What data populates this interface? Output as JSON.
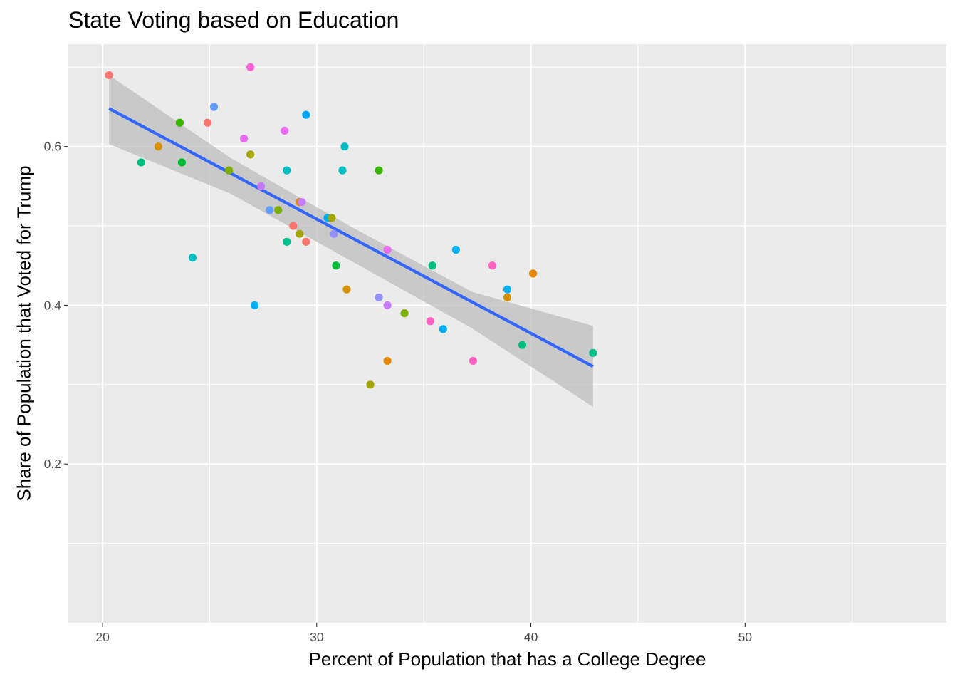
{
  "chart_data": {
    "type": "scatter",
    "title": "State Voting based on Education",
    "xlabel": "Percent of Population that has a College Degree",
    "ylabel": "Share of Population that Voted for Trump",
    "xlim": [
      18.4,
      59.4
    ],
    "ylim": [
      0.0,
      0.729
    ],
    "x_ticks": [
      20,
      30,
      40,
      50
    ],
    "x_minor_ticks": [
      25,
      35,
      45,
      55
    ],
    "y_ticks": [
      0.2,
      0.4,
      0.6
    ],
    "y_minor_ticks": [
      0.1,
      0.3,
      0.5,
      0.7
    ],
    "grid": true,
    "legend": "none",
    "colors": {
      "panel": "#ebebeb",
      "gridline": "#ffffff",
      "fit_line": "#3366ff",
      "confidence_band": "#bdbdbd",
      "tick_text": "#4d4d4d"
    },
    "points": [
      {
        "x": 20.3,
        "y": 0.69,
        "color": "#f8766d"
      },
      {
        "x": 26.9,
        "y": 0.7,
        "color": "#fb61d7"
      },
      {
        "x": 25.2,
        "y": 0.65,
        "color": "#619cff"
      },
      {
        "x": 29.5,
        "y": 0.64,
        "color": "#00a9ff"
      },
      {
        "x": 23.6,
        "y": 0.63,
        "color": "#39b600"
      },
      {
        "x": 24.9,
        "y": 0.63,
        "color": "#f8766d"
      },
      {
        "x": 26.6,
        "y": 0.61,
        "color": "#e76bf3"
      },
      {
        "x": 28.5,
        "y": 0.62,
        "color": "#e76bf3"
      },
      {
        "x": 22.6,
        "y": 0.6,
        "color": "#d89000"
      },
      {
        "x": 31.3,
        "y": 0.6,
        "color": "#00bfc4"
      },
      {
        "x": 26.9,
        "y": 0.59,
        "color": "#a3a500"
      },
      {
        "x": 21.8,
        "y": 0.58,
        "color": "#00bf7d"
      },
      {
        "x": 23.7,
        "y": 0.58,
        "color": "#00ba38"
      },
      {
        "x": 25.9,
        "y": 0.57,
        "color": "#7cae00"
      },
      {
        "x": 28.6,
        "y": 0.57,
        "color": "#00bfc4"
      },
      {
        "x": 31.2,
        "y": 0.57,
        "color": "#00bfc4"
      },
      {
        "x": 32.9,
        "y": 0.57,
        "color": "#39b600"
      },
      {
        "x": 27.4,
        "y": 0.55,
        "color": "#c77cff"
      },
      {
        "x": 29.2,
        "y": 0.53,
        "color": "#e58700"
      },
      {
        "x": 29.3,
        "y": 0.53,
        "color": "#c77cff"
      },
      {
        "x": 27.8,
        "y": 0.52,
        "color": "#619cff"
      },
      {
        "x": 28.2,
        "y": 0.52,
        "color": "#7cae00"
      },
      {
        "x": 30.5,
        "y": 0.51,
        "color": "#00b0f6"
      },
      {
        "x": 30.7,
        "y": 0.51,
        "color": "#a3a500"
      },
      {
        "x": 28.9,
        "y": 0.5,
        "color": "#f8766d"
      },
      {
        "x": 29.2,
        "y": 0.49,
        "color": "#a3a500"
      },
      {
        "x": 30.8,
        "y": 0.49,
        "color": "#9590ff"
      },
      {
        "x": 28.6,
        "y": 0.48,
        "color": "#00c08b"
      },
      {
        "x": 29.5,
        "y": 0.48,
        "color": "#f8766d"
      },
      {
        "x": 33.3,
        "y": 0.47,
        "color": "#e76bf3"
      },
      {
        "x": 36.5,
        "y": 0.47,
        "color": "#00b0f6"
      },
      {
        "x": 24.2,
        "y": 0.46,
        "color": "#00bfc4"
      },
      {
        "x": 30.9,
        "y": 0.45,
        "color": "#00ba38"
      },
      {
        "x": 35.4,
        "y": 0.45,
        "color": "#00bf7d"
      },
      {
        "x": 38.2,
        "y": 0.45,
        "color": "#ff61c3"
      },
      {
        "x": 40.1,
        "y": 0.44,
        "color": "#e58700"
      },
      {
        "x": 31.4,
        "y": 0.42,
        "color": "#d89000"
      },
      {
        "x": 38.9,
        "y": 0.42,
        "color": "#00b0f6"
      },
      {
        "x": 32.9,
        "y": 0.41,
        "color": "#9590ff"
      },
      {
        "x": 38.9,
        "y": 0.41,
        "color": "#d89000"
      },
      {
        "x": 27.1,
        "y": 0.4,
        "color": "#00b0f6"
      },
      {
        "x": 33.3,
        "y": 0.4,
        "color": "#c77cff"
      },
      {
        "x": 34.1,
        "y": 0.39,
        "color": "#7cae00"
      },
      {
        "x": 35.3,
        "y": 0.38,
        "color": "#ff61c3"
      },
      {
        "x": 35.9,
        "y": 0.37,
        "color": "#00b0f6"
      },
      {
        "x": 39.6,
        "y": 0.35,
        "color": "#00bf7d"
      },
      {
        "x": 42.9,
        "y": 0.34,
        "color": "#00c08b"
      },
      {
        "x": 33.3,
        "y": 0.33,
        "color": "#e58700"
      },
      {
        "x": 37.3,
        "y": 0.33,
        "color": "#ff61c3"
      },
      {
        "x": 32.5,
        "y": 0.3,
        "color": "#a3a500"
      }
    ],
    "fit_line": {
      "x": [
        20.3,
        42.9
      ],
      "y": [
        0.648,
        0.323
      ]
    },
    "confidence_band": {
      "x": [
        20.3,
        25.95,
        31.6,
        37.25,
        42.9
      ],
      "lower": [
        0.603,
        0.541,
        0.456,
        0.371,
        0.272
      ],
      "upper": [
        0.69,
        0.586,
        0.499,
        0.417,
        0.374
      ]
    }
  }
}
